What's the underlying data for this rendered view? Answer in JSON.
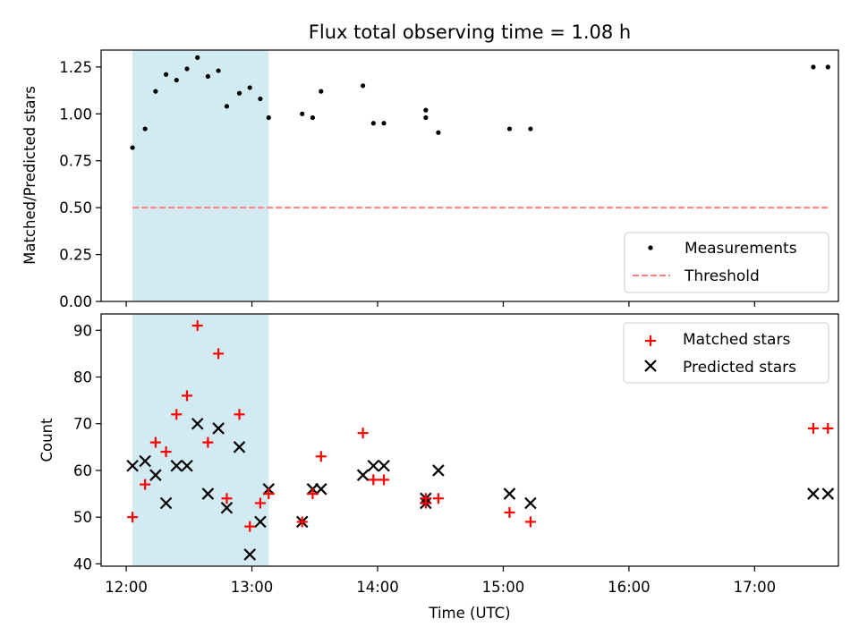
{
  "title": "Flux total observing time = 1.08 h",
  "colors": {
    "shade": "#add8e6",
    "threshold": "#ff7f7f",
    "matched": "#ff0000",
    "predicted": "#000000",
    "measurement": "#000000"
  },
  "chart_data": [
    {
      "type": "scatter",
      "title": "Flux total observing time = 1.08 h",
      "xlabel": "",
      "ylabel": "Matched/Predicted stars",
      "xlim": [
        "11:48",
        "17:40"
      ],
      "ylim": [
        0.0,
        1.34
      ],
      "y_ticks": [
        "0.00",
        "0.25",
        "0.50",
        "0.75",
        "1.00",
        "1.25"
      ],
      "shaded_region": {
        "x": [
          "12:03",
          "13:08"
        ]
      },
      "legend_position": "lower right",
      "series": [
        {
          "name": "Measurements",
          "kind": "scatter",
          "x": [
            "12:03",
            "12:09",
            "12:14",
            "12:19",
            "12:24",
            "12:29",
            "12:34",
            "12:39",
            "12:44",
            "12:48",
            "12:54",
            "12:59",
            "13:04",
            "13:08",
            "13:24",
            "13:29",
            "13:33",
            "13:53",
            "13:58",
            "14:03",
            "14:23",
            "14:23",
            "14:29",
            "15:03",
            "15:13",
            "17:28",
            "17:35"
          ],
          "y": [
            0.82,
            0.92,
            1.12,
            1.21,
            1.18,
            1.24,
            1.3,
            1.2,
            1.23,
            1.04,
            1.11,
            1.14,
            1.08,
            0.98,
            1.0,
            0.98,
            1.12,
            1.15,
            0.95,
            0.95,
            1.02,
            0.98,
            0.9,
            0.92,
            0.92,
            1.25,
            1.25
          ]
        },
        {
          "name": "Threshold",
          "kind": "line",
          "x": [
            "12:03",
            "17:35"
          ],
          "y": [
            0.5,
            0.5
          ]
        }
      ]
    },
    {
      "type": "scatter",
      "title": "",
      "xlabel": "Time (UTC)",
      "ylabel": "Count",
      "xlim": [
        "11:48",
        "17:40"
      ],
      "ylim": [
        39.5,
        93.5
      ],
      "y_ticks": [
        "40",
        "50",
        "60",
        "70",
        "80",
        "90"
      ],
      "x_ticks": [
        "12:00",
        "13:00",
        "14:00",
        "15:00",
        "16:00",
        "17:00"
      ],
      "shaded_region": {
        "x": [
          "12:03",
          "13:08"
        ]
      },
      "legend_position": "upper right",
      "series": [
        {
          "name": "Matched stars",
          "marker": "plus",
          "x": [
            "12:03",
            "12:09",
            "12:14",
            "12:19",
            "12:24",
            "12:29",
            "12:34",
            "12:39",
            "12:44",
            "12:48",
            "12:54",
            "12:59",
            "13:04",
            "13:08",
            "13:24",
            "13:29",
            "13:33",
            "13:53",
            "13:58",
            "14:03",
            "14:23",
            "14:23",
            "14:29",
            "15:03",
            "15:13",
            "17:28",
            "17:35"
          ],
          "y": [
            50,
            57,
            66,
            64,
            72,
            76,
            91,
            66,
            85,
            54,
            72,
            48,
            53,
            55,
            49,
            55,
            63,
            68,
            58,
            58,
            53,
            54,
            54,
            51,
            49,
            69,
            69
          ]
        },
        {
          "name": "Predicted stars",
          "marker": "x",
          "x": [
            "12:03",
            "12:09",
            "12:14",
            "12:19",
            "12:24",
            "12:29",
            "12:34",
            "12:39",
            "12:44",
            "12:48",
            "12:54",
            "12:59",
            "13:04",
            "13:08",
            "13:24",
            "13:29",
            "13:33",
            "13:53",
            "13:58",
            "14:03",
            "14:23",
            "14:23",
            "14:29",
            "15:03",
            "15:13",
            "17:28",
            "17:35"
          ],
          "y": [
            61,
            62,
            59,
            53,
            61,
            61,
            70,
            55,
            69,
            52,
            65,
            42,
            49,
            56,
            49,
            56,
            56,
            59,
            61,
            61,
            53,
            54,
            60,
            55,
            53,
            55,
            55
          ]
        }
      ]
    }
  ]
}
